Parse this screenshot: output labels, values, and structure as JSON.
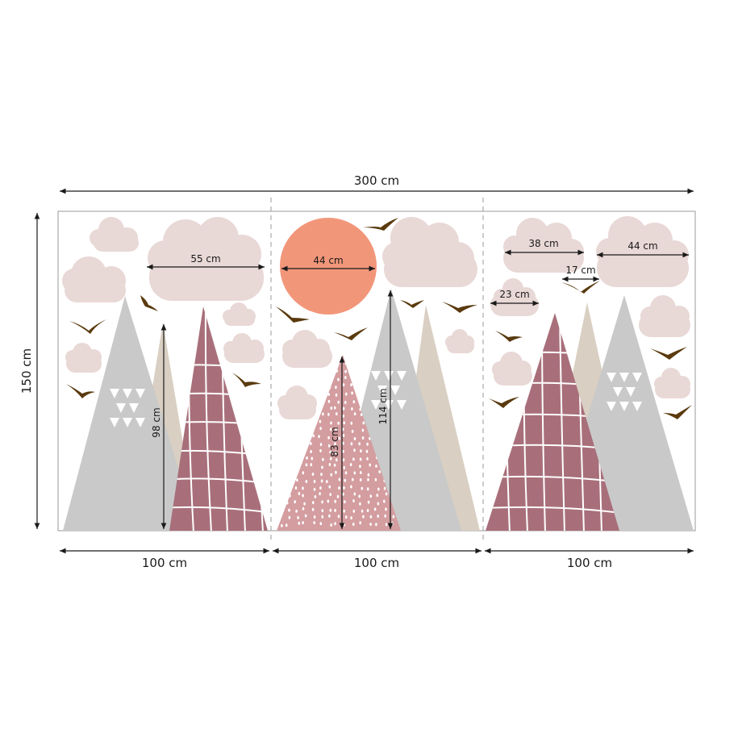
{
  "dimensions": {
    "total_width": "300 cm",
    "total_height": "150 cm",
    "panels": [
      "100 cm",
      "100 cm",
      "100 cm"
    ]
  },
  "measurements": {
    "cloud_left_large": "55 cm",
    "sun": "44 cm",
    "cloud_right_a": "38 cm",
    "cloud_right_b": "44 cm",
    "cloud_right_small": "17 cm",
    "cloud_right_tiny": "23 cm",
    "mountain_left": "98 cm",
    "mountain_mid_pink": "83 cm",
    "mountain_mid_grey": "114 cm"
  },
  "colors": {
    "cloud": "#e8d8d6",
    "sun": "#f2967a",
    "grey_mountain": "#c9c9c9",
    "beige_mountain": "#d9cfc2",
    "plum_mountain": "#a86f7a",
    "pink_mountain": "#d49da0",
    "bird": "#5a3a0e",
    "frame": "#999999"
  }
}
